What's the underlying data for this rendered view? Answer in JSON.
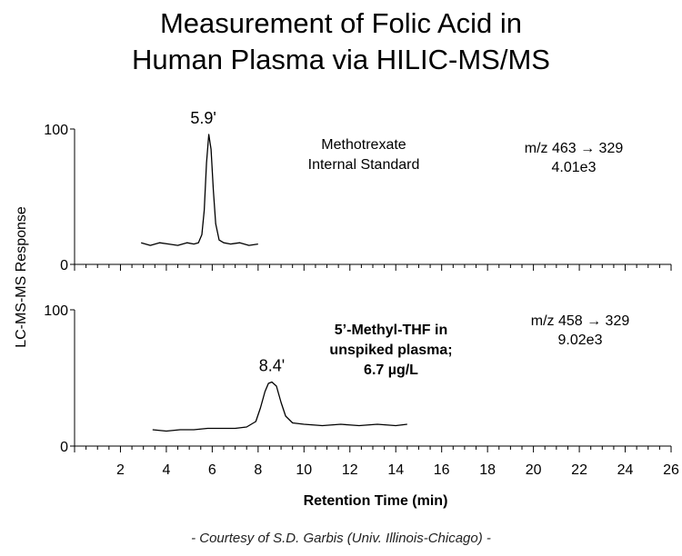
{
  "title_lines": [
    "Measurement of Folic Acid in",
    "Human Plasma via HILIC-MS/MS"
  ],
  "credit": "- Courtesy of S.D. Garbis (Univ. Illinois-Chicago) -",
  "chart_data": {
    "type": "line",
    "xlabel": "Retention Time (min)",
    "ylabel": "LC-MS-MS Response",
    "xlim": [
      0,
      26
    ],
    "x_ticks": [
      2,
      4,
      6,
      8,
      10,
      12,
      14,
      16,
      18,
      20,
      22,
      24,
      26
    ],
    "color": "#000000",
    "panels": [
      {
        "ylim": [
          0,
          100
        ],
        "y_ticks": [
          0,
          100
        ],
        "peak_label": "5.9'",
        "compound_lines": [
          "Methotrexate",
          "Internal Standard"
        ],
        "compound_bold": false,
        "transition_lines": [
          "m/z 463 → 329",
          "4.01e3"
        ],
        "trace": {
          "x": [
            2.9,
            3.3,
            3.7,
            4.1,
            4.5,
            4.9,
            5.2,
            5.4,
            5.55,
            5.65,
            5.75,
            5.85,
            5.95,
            6.05,
            6.15,
            6.3,
            6.5,
            6.8,
            7.2,
            7.6,
            8.0
          ],
          "y": [
            16,
            14,
            16,
            15,
            14,
            16,
            15,
            16,
            22,
            40,
            75,
            96,
            85,
            55,
            30,
            18,
            16,
            15,
            16,
            14,
            15
          ]
        }
      },
      {
        "ylim": [
          0,
          100
        ],
        "y_ticks": [
          0,
          100
        ],
        "peak_label": "8.4'",
        "compound_lines": [
          "5’-Methyl-THF in",
          "unspiked plasma;",
          "6.7 µg/L"
        ],
        "compound_bold": true,
        "transition_lines": [
          "m/z 458 → 329",
          "9.02e3"
        ],
        "trace": {
          "x": [
            3.4,
            4.0,
            4.6,
            5.2,
            5.8,
            6.4,
            7.0,
            7.5,
            7.9,
            8.1,
            8.3,
            8.45,
            8.6,
            8.8,
            9.0,
            9.2,
            9.5,
            10.0,
            10.8,
            11.6,
            12.4,
            13.2,
            14.0,
            14.5
          ],
          "y": [
            12,
            11,
            12,
            12,
            13,
            13,
            13,
            14,
            18,
            28,
            40,
            46,
            47,
            44,
            32,
            22,
            17,
            16,
            15,
            16,
            15,
            16,
            15,
            16
          ]
        }
      }
    ]
  }
}
